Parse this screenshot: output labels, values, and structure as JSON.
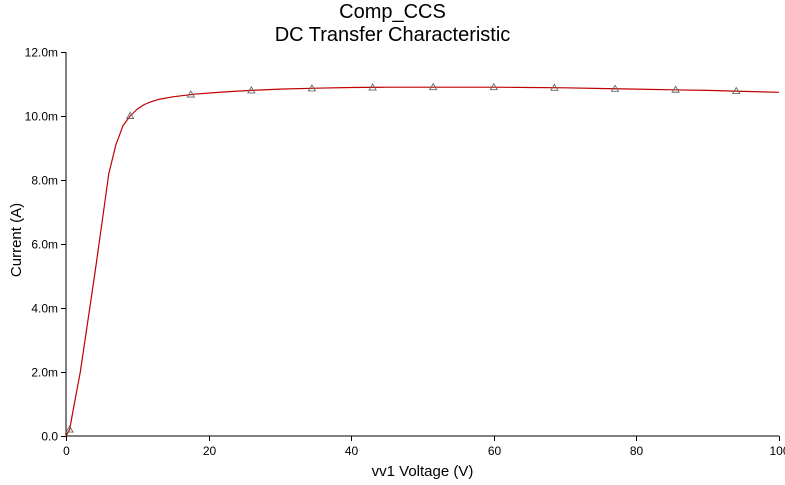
{
  "chart_data": {
    "type": "line",
    "title": "Comp_CCS",
    "subtitle": "DC Transfer Characteristic",
    "xlabel": "vv1 Voltage (V)",
    "ylabel": "Current (A)",
    "xlim": [
      0,
      100
    ],
    "ylim": [
      0,
      0.012
    ],
    "x_ticks": [
      0,
      20,
      40,
      60,
      80,
      100
    ],
    "x_tick_labels": [
      "0",
      "20",
      "40",
      "60",
      "80",
      "100"
    ],
    "y_ticks": [
      0,
      0.002,
      0.004,
      0.006,
      0.008,
      0.01,
      0.012
    ],
    "y_tick_labels": [
      "0.0",
      "2.0m",
      "4.0m",
      "6.0m",
      "8.0m",
      "10.0m",
      "12.0m"
    ],
    "grid": false,
    "line_color": "#c00000",
    "marker": "triangle",
    "series": [
      {
        "x": [
          0,
          0.5,
          1,
          2,
          3,
          4,
          5,
          6,
          7,
          8,
          9,
          10,
          11,
          12,
          13,
          15,
          18,
          22,
          26,
          30,
          35,
          40,
          45,
          50,
          55,
          60,
          65,
          70,
          75,
          80,
          85,
          90,
          95,
          100
        ],
        "values": [
          0,
          0.0002,
          0.0008,
          0.002,
          0.0035,
          0.005,
          0.0066,
          0.0082,
          0.0091,
          0.0097,
          0.01,
          0.01022,
          0.01036,
          0.01045,
          0.01052,
          0.0106,
          0.01068,
          0.01075,
          0.0108,
          0.01084,
          0.01087,
          0.01089,
          0.0109,
          0.0109,
          0.0109,
          0.0109,
          0.01089,
          0.01088,
          0.01086,
          0.01084,
          0.01082,
          0.0108,
          0.01077,
          0.01074
        ]
      }
    ],
    "markers": {
      "x": [
        0.5,
        9,
        17.5,
        26,
        34.5,
        43,
        51.5,
        60,
        68.5,
        77,
        85.5,
        94
      ],
      "values": [
        0.0002,
        0.01,
        0.01067,
        0.0108,
        0.01086,
        0.01089,
        0.0109,
        0.0109,
        0.01088,
        0.01085,
        0.01082,
        0.01078
      ]
    }
  }
}
